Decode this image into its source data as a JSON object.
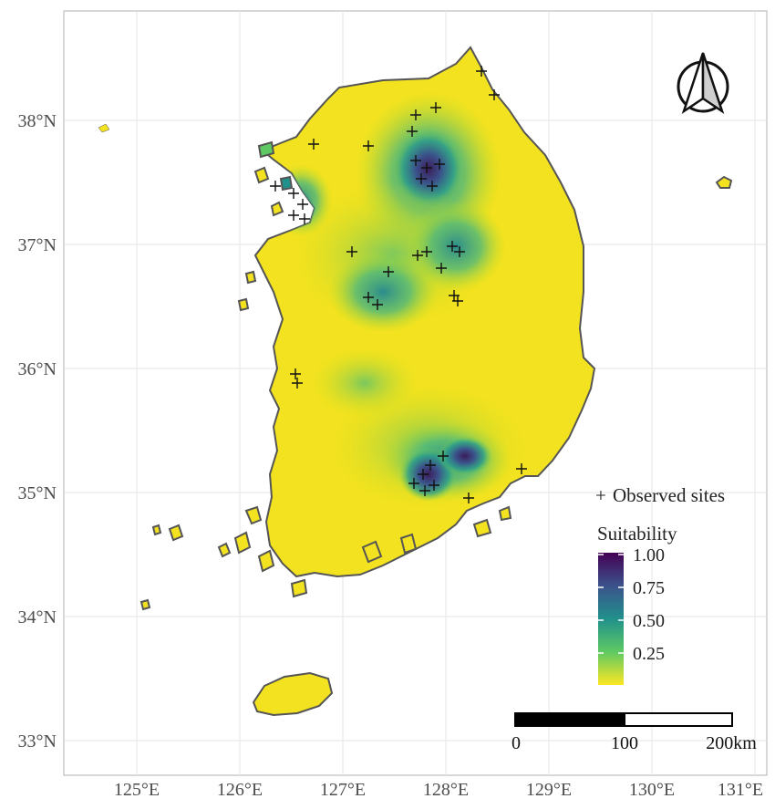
{
  "map": {
    "lat_ticks": [
      "38°N",
      "37°N",
      "36°N",
      "35°N",
      "34°N",
      "33°N"
    ],
    "lon_ticks": [
      "125°E",
      "126°E",
      "127°E",
      "128°E",
      "129°E",
      "130°E",
      "131°E"
    ],
    "north_arrow": "north-arrow-icon",
    "colors": {
      "panel_border": "#bdbdbd",
      "grid": "#e6e6e6",
      "land_low": "#f3e21f",
      "land_mid": "#26a085",
      "land_high": "#3b1c5a",
      "coast": "#555555"
    }
  },
  "legend": {
    "sites_symbol": "+",
    "sites_label": "Observed sites",
    "title": "Suitability",
    "ticks": [
      "1.00",
      "0.75",
      "0.50",
      "0.25"
    ],
    "range": [
      0,
      1
    ]
  },
  "scale_bar": {
    "labels": [
      "0",
      "100",
      "200km"
    ]
  }
}
